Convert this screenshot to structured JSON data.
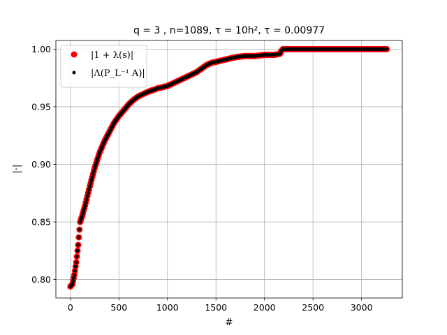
{
  "chart_data": {
    "type": "scatter",
    "title": "q = 3 , n=1089, τ = 10h², τ = 0.00977",
    "xlabel": "#",
    "ylabel": "|·|",
    "xlim": [
      -150,
      3420
    ],
    "ylim": [
      0.784,
      1.0075
    ],
    "xticks": [
      "0",
      "500",
      "1000",
      "1500",
      "2000",
      "2500",
      "3000"
    ],
    "yticks": [
      "0.80",
      "0.85",
      "0.90",
      "0.95",
      "1.00"
    ],
    "grid": true,
    "legend_position": "upper-left",
    "colors": {
      "series1": "#ff0000",
      "series2": "#000000"
    },
    "series": [
      {
        "name": "|1 + λ(s)|",
        "marker": "large-circle",
        "x": [
          0,
          20,
          40,
          60,
          80,
          100,
          120,
          150,
          200,
          250,
          300,
          350,
          400,
          450,
          500,
          550,
          600,
          650,
          700,
          800,
          900,
          1000,
          1100,
          1200,
          1300,
          1350,
          1400,
          1450,
          1500,
          1600,
          1700,
          1800,
          1900,
          2000,
          2100,
          2160,
          2170,
          2190,
          2500,
          3000,
          3260
        ],
        "y": [
          0.794,
          0.796,
          0.804,
          0.815,
          0.83,
          0.85,
          0.855,
          0.864,
          0.881,
          0.897,
          0.91,
          0.92,
          0.928,
          0.936,
          0.942,
          0.947,
          0.952,
          0.956,
          0.959,
          0.963,
          0.966,
          0.968,
          0.972,
          0.976,
          0.98,
          0.983,
          0.986,
          0.988,
          0.989,
          0.991,
          0.993,
          0.994,
          0.994,
          0.995,
          0.995,
          0.996,
          0.998,
          1.0,
          1.0,
          1.0,
          1.0
        ]
      },
      {
        "name": "|Λ(P_L⁻¹ A)|",
        "marker": "small-circle",
        "x": [
          0,
          20,
          40,
          60,
          80,
          100,
          120,
          150,
          200,
          250,
          300,
          350,
          400,
          450,
          500,
          550,
          600,
          650,
          700,
          800,
          900,
          1000,
          1100,
          1200,
          1300,
          1350,
          1400,
          1450,
          1500,
          1600,
          1700,
          1800,
          1900,
          2000,
          2100,
          2160,
          2170,
          2190,
          2500,
          3000,
          3260
        ],
        "y": [
          0.794,
          0.796,
          0.804,
          0.815,
          0.83,
          0.85,
          0.855,
          0.864,
          0.881,
          0.897,
          0.91,
          0.92,
          0.928,
          0.936,
          0.942,
          0.947,
          0.952,
          0.956,
          0.959,
          0.963,
          0.966,
          0.968,
          0.972,
          0.976,
          0.98,
          0.983,
          0.986,
          0.988,
          0.989,
          0.991,
          0.993,
          0.994,
          0.994,
          0.995,
          0.995,
          0.996,
          0.998,
          1.0,
          1.0,
          1.0,
          1.0
        ]
      }
    ]
  }
}
